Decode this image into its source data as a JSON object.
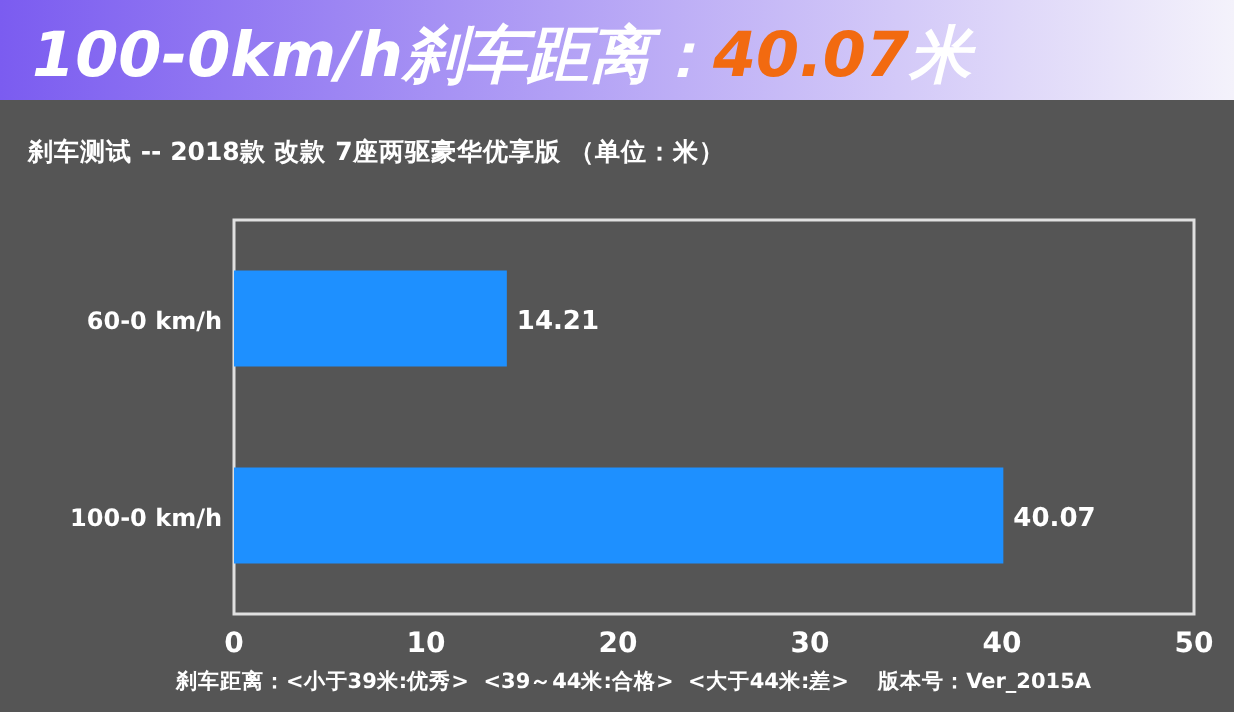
{
  "chart_data": {
    "type": "bar",
    "orientation": "horizontal",
    "title": "100-0km/h刹车距离：40.07米",
    "subtitle": "刹车测试 -- 2018款 改款 7座两驱豪华优享版 （单位：米）",
    "categories": [
      "60-0 km/h",
      "100-0 km/h"
    ],
    "values": [
      14.21,
      40.07
    ],
    "color": "#1e90ff",
    "xlim": [
      0,
      50
    ],
    "xticks": [
      0,
      10,
      20,
      30,
      40,
      50
    ],
    "data_labels": true,
    "grid": false,
    "annotations": [
      "刹车距离：<小于39米:优秀>  <39～44米:合格>  <大于44米:差>    版本号：Ver_2015A"
    ]
  }
}
